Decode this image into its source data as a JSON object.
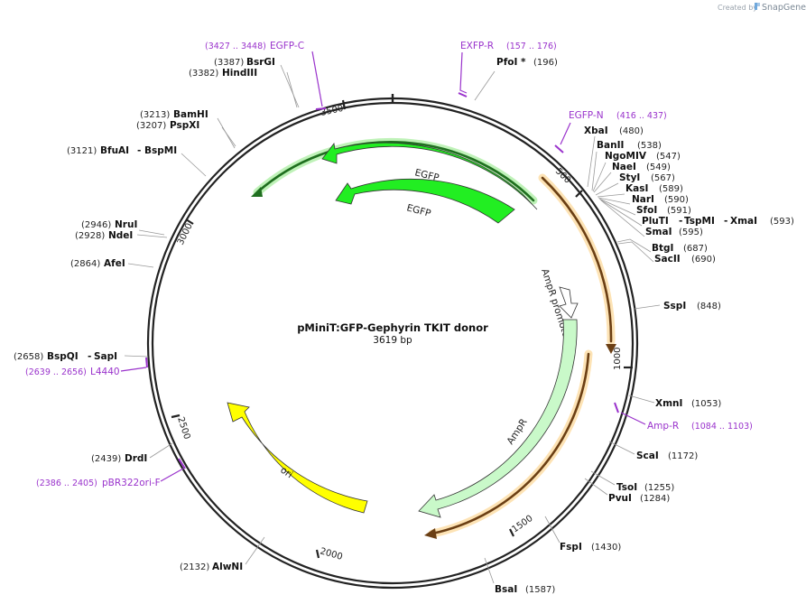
{
  "credit": {
    "prefix": "Created by",
    "brand": "SnapGene"
  },
  "plasmid": {
    "name": "pMiniT:GFP-Gephyrin TKIT donor",
    "size_label": "3619 bp",
    "length": 3619
  },
  "colors": {
    "egfp": "#22ee22",
    "ampr": "#c9f9c9",
    "ori": "#ffff00",
    "orange": "#f7931e",
    "promoter": "#ffffff",
    "primer": "#9a33cc",
    "backbone": "#222222"
  },
  "ticks": [
    {
      "bp": 500,
      "label": "500"
    },
    {
      "bp": 1000,
      "label": "1000"
    },
    {
      "bp": 1500,
      "label": "1500"
    },
    {
      "bp": 2000,
      "label": "2000"
    },
    {
      "bp": 2500,
      "label": "2500"
    },
    {
      "bp": 3000,
      "label": "3000"
    },
    {
      "bp": 3500,
      "label": "3500"
    }
  ],
  "features": [
    {
      "name": "EGFP",
      "label": "EGFP",
      "type": "egfp_outer"
    },
    {
      "name": "EGFP",
      "label": "EGFP",
      "type": "egfp_inner"
    },
    {
      "name": "AmpR promoter",
      "label": "AmpR promoter",
      "type": "promoter"
    },
    {
      "name": "AmpR",
      "label": "AmpR",
      "type": "ampr"
    },
    {
      "name": "ori",
      "label": "ori",
      "type": "ori"
    }
  ],
  "enzymes": [
    {
      "name": "PfoI *",
      "position": "(196)"
    },
    {
      "name": "XbaI",
      "position": "(480)"
    },
    {
      "name": "BanII",
      "position": "(538)"
    },
    {
      "name": "NgoMIV",
      "position": "(547)"
    },
    {
      "name": "NaeI",
      "position": "(549)"
    },
    {
      "name": "StyI",
      "position": "(567)"
    },
    {
      "name": "KasI",
      "position": "(589)"
    },
    {
      "name": "NarI",
      "position": "(590)"
    },
    {
      "name": "SfoI",
      "position": "(591)"
    },
    {
      "name": "PluTI",
      "name2": "TspMI",
      "name3": "XmaI",
      "position": "(593)"
    },
    {
      "name": "SmaI",
      "position": "(595)"
    },
    {
      "name": "BtgI",
      "position": "(687)"
    },
    {
      "name": "SacII",
      "position": "(690)"
    },
    {
      "name": "SspI",
      "position": "(848)"
    },
    {
      "name": "XmnI",
      "position": "(1053)"
    },
    {
      "name": "ScaI",
      "position": "(1172)"
    },
    {
      "name": "TsoI",
      "position": "(1255)"
    },
    {
      "name": "PvuI",
      "position": "(1284)"
    },
    {
      "name": "FspI",
      "position": "(1430)"
    },
    {
      "name": "BsaI",
      "position": "(1587)"
    },
    {
      "name": "AlwNI",
      "position": "(2132)"
    },
    {
      "name": "DrdI",
      "position": "(2439)"
    },
    {
      "name": "BspQI",
      "name2": "SapI",
      "position": "(2658)"
    },
    {
      "name": "AfeI",
      "position": "(2864)"
    },
    {
      "name": "NdeI",
      "position": "(2928)"
    },
    {
      "name": "NruI",
      "position": "(2946)"
    },
    {
      "name": "BfuAI",
      "name2": "BspMI",
      "position": "(3121)"
    },
    {
      "name": "PspXI",
      "position": "(3207)"
    },
    {
      "name": "BamHI",
      "position": "(3213)"
    },
    {
      "name": "HindIII",
      "position": "(3382)"
    },
    {
      "name": "BsrGI",
      "position": "(3387)"
    }
  ],
  "primers": [
    {
      "name": "EGFP-C",
      "range": "(3427 .. 3448)"
    },
    {
      "name": "EXFP-R",
      "range": "(157 .. 176)"
    },
    {
      "name": "EGFP-N",
      "range": "(416 .. 437)"
    },
    {
      "name": "Amp-R",
      "range": "(1084 .. 1103)"
    },
    {
      "name": "L4440",
      "range": "(2639 .. 2656)"
    },
    {
      "name": "pBR322ori-F",
      "range": "(2386 .. 2405)"
    }
  ]
}
